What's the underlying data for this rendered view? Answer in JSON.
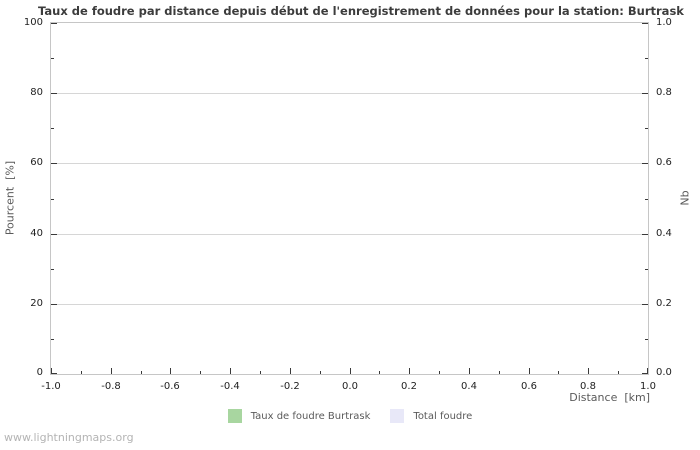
{
  "watermark": "www.lightningmaps.org",
  "chart_data": {
    "type": "bar",
    "title": "Taux de foudre par distance depuis début de l'enregistrement de données pour la station: Burtrask",
    "grid": "horizontal-major-only",
    "legend_position": "bottom-center",
    "plot_background": "#ffffff",
    "grid_color": "#d6d6d6",
    "border_color": "#c6c6c6",
    "tick_color": "#3a3a3a",
    "x_axis": {
      "label": "Distance  [km]",
      "range": [
        -1.0,
        1.0
      ],
      "tick_labels": [
        "-1.0",
        "-0.8",
        "-0.6",
        "-0.4",
        "-0.2",
        "0.0",
        "0.2",
        "0.4",
        "0.6",
        "0.8",
        "1.0"
      ],
      "minor_divisions": 20
    },
    "y_axis_left": {
      "label": "Pourcent  [%]",
      "range": [
        0,
        100
      ],
      "tick_labels": [
        "0",
        "20",
        "40",
        "60",
        "80",
        "100"
      ],
      "minor_divisions": 10
    },
    "y_axis_right": {
      "label": "Nb",
      "range": [
        0.0,
        1.0
      ],
      "tick_labels": [
        "0.0",
        "0.2",
        "0.4",
        "0.6",
        "0.8",
        "1.0"
      ],
      "minor_divisions": 10
    },
    "series": [
      {
        "name": "Taux de foudre Burtrask",
        "color": "#a8d6a0",
        "values": []
      },
      {
        "name": "Total foudre",
        "color": "#e8e8f8",
        "values": []
      }
    ]
  }
}
